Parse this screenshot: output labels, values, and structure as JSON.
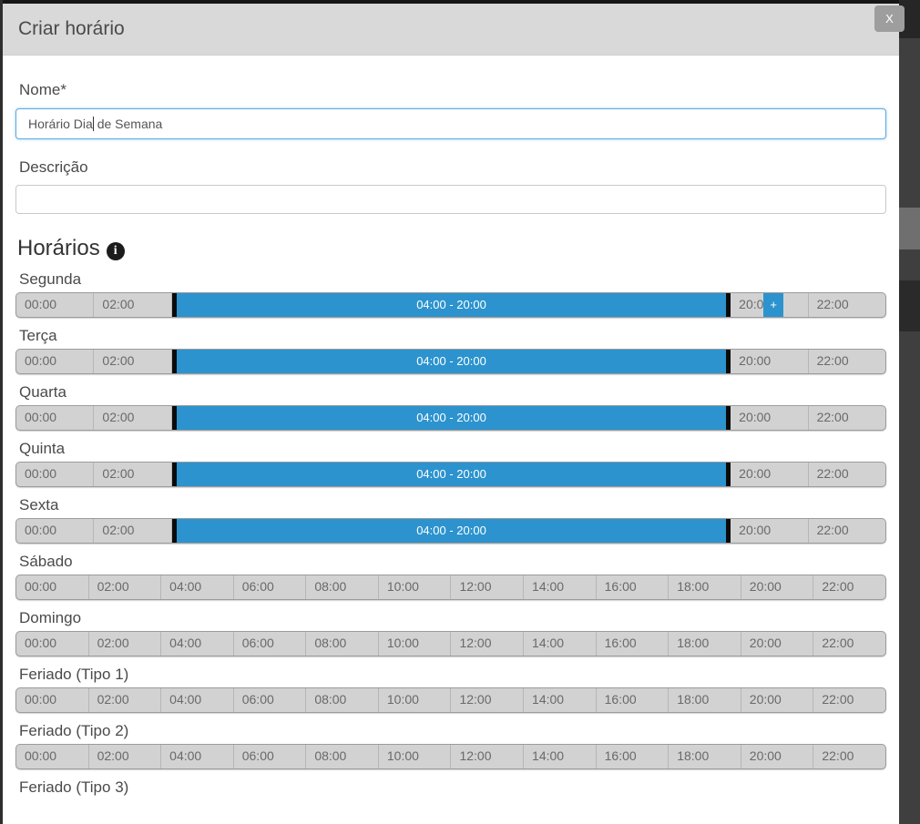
{
  "modal": {
    "title": "Criar horário",
    "close_label": "X"
  },
  "form": {
    "name_label": "Nome*",
    "name_value": "Horário Dia de Semana",
    "name_caret_after": "Horário Dia",
    "description_label": "Descrição",
    "description_value": ""
  },
  "schedules": {
    "heading": "Horários",
    "info_icon_glyph": "i",
    "time_slots": [
      "00:00",
      "02:00",
      "04:00",
      "06:00",
      "08:00",
      "10:00",
      "12:00",
      "14:00",
      "16:00",
      "18:00",
      "20:00",
      "22:00"
    ],
    "selected_range_label": "04:00 - 20:00",
    "add_button_label": "+",
    "days": [
      {
        "label": "Segunda",
        "selected": true,
        "has_add_button": true,
        "bar_visible": true
      },
      {
        "label": "Terça",
        "selected": true,
        "has_add_button": false,
        "bar_visible": true
      },
      {
        "label": "Quarta",
        "selected": true,
        "has_add_button": false,
        "bar_visible": true
      },
      {
        "label": "Quinta",
        "selected": true,
        "has_add_button": false,
        "bar_visible": true
      },
      {
        "label": "Sexta",
        "selected": true,
        "has_add_button": false,
        "bar_visible": true
      },
      {
        "label": "Sábado",
        "selected": false,
        "has_add_button": false,
        "bar_visible": true
      },
      {
        "label": "Domingo",
        "selected": false,
        "has_add_button": false,
        "bar_visible": true
      },
      {
        "label": "Feriado (Tipo 1)",
        "selected": false,
        "has_add_button": false,
        "bar_visible": true
      },
      {
        "label": "Feriado (Tipo 2)",
        "selected": false,
        "has_add_button": false,
        "bar_visible": true
      },
      {
        "label": "Feriado (Tipo 3)",
        "selected": false,
        "has_add_button": false,
        "bar_visible": false
      }
    ]
  },
  "colors": {
    "accent_blue": "#2C93CE",
    "slot_gray": "#d2d2d2",
    "divider_black": "#0b0b0b",
    "header_gray": "#d9d9d9"
  }
}
